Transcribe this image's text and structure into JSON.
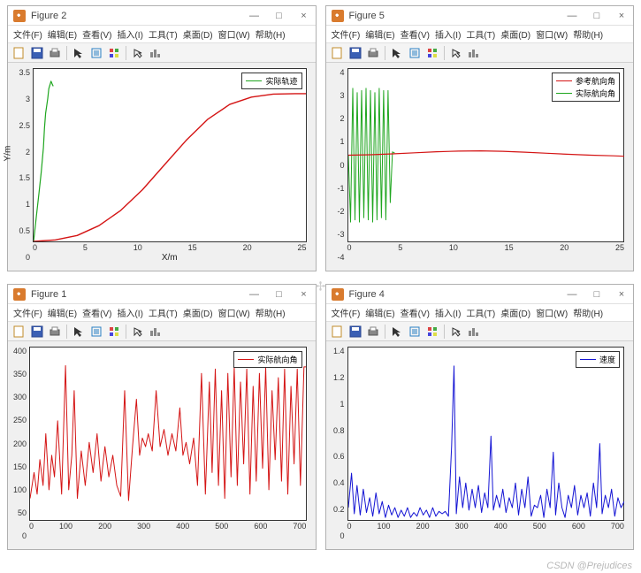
{
  "watermark": "CSDN @Prejudices",
  "menus": [
    "文件(F)",
    "编辑(E)",
    "查看(V)",
    "插入(I)",
    "工具(T)",
    "桌面(D)",
    "窗口(W)",
    "帮助(H)"
  ],
  "win_buttons": {
    "min": "—",
    "max": "□",
    "close": "×"
  },
  "figures": [
    {
      "title": "Figure 2",
      "xlabel": "X/m",
      "ylabel": "Y/m",
      "xlim": [
        0,
        25
      ],
      "ylim": [
        0,
        3.5
      ],
      "xticks": [
        "0",
        "5",
        "10",
        "15",
        "20",
        "25"
      ],
      "yticks": [
        "0",
        "0.5",
        "1",
        "1.5",
        "2",
        "2.5",
        "3",
        "3.5"
      ],
      "legend": [
        {
          "label": "实际轨迹",
          "color": "#1fa61f"
        }
      ],
      "series": [
        {
          "color": "#1fa61f",
          "width": 1.2,
          "pts": [
            [
              0,
              0
            ],
            [
              0.3,
              0.6
            ],
            [
              0.5,
              1.0
            ],
            [
              0.7,
              1.4
            ],
            [
              0.9,
              1.9
            ],
            [
              1.0,
              2.3
            ],
            [
              1.1,
              2.6
            ],
            [
              1.3,
              2.9
            ],
            [
              1.4,
              3.1
            ],
            [
              1.6,
              3.25
            ],
            [
              1.7,
              3.2
            ],
            [
              1.8,
              3.15
            ]
          ]
        },
        {
          "color": "#d41414",
          "width": 1.4,
          "pts": [
            [
              0,
              0
            ],
            [
              2,
              0.03
            ],
            [
              4,
              0.12
            ],
            [
              6,
              0.32
            ],
            [
              8,
              0.63
            ],
            [
              10,
              1.05
            ],
            [
              12,
              1.55
            ],
            [
              14,
              2.05
            ],
            [
              16,
              2.48
            ],
            [
              18,
              2.78
            ],
            [
              20,
              2.93
            ],
            [
              22,
              2.99
            ],
            [
              24,
              3.0
            ],
            [
              25,
              3.0
            ]
          ]
        }
      ]
    },
    {
      "title": "Figure 5",
      "xlabel": "",
      "ylabel": "",
      "xlim": [
        0,
        25
      ],
      "ylim": [
        -4,
        4
      ],
      "xticks": [
        "0",
        "5",
        "10",
        "15",
        "20",
        "25"
      ],
      "yticks": [
        "-4",
        "-3",
        "-2",
        "-1",
        "0",
        "1",
        "2",
        "3",
        "4"
      ],
      "legend": [
        {
          "label": "参考航向角",
          "color": "#d41414"
        },
        {
          "label": "实际航向角",
          "color": "#1fa61f"
        }
      ],
      "series": [
        {
          "color": "#1fa61f",
          "width": 1.0,
          "pts": [
            [
              0,
              0
            ],
            [
              0.2,
              -3.1
            ],
            [
              0.4,
              3.1
            ],
            [
              0.6,
              -3.0
            ],
            [
              0.8,
              2.9
            ],
            [
              1.0,
              -3.1
            ],
            [
              1.2,
              3.0
            ],
            [
              1.4,
              -2.9
            ],
            [
              1.6,
              3.1
            ],
            [
              1.8,
              -3.0
            ],
            [
              2.0,
              3.0
            ],
            [
              2.2,
              -3.1
            ],
            [
              2.4,
              2.9
            ],
            [
              2.6,
              -3.0
            ],
            [
              2.8,
              3.1
            ],
            [
              3.0,
              -2.9
            ],
            [
              3.2,
              3.0
            ],
            [
              3.4,
              -3.0
            ],
            [
              3.6,
              3.0
            ],
            [
              3.8,
              -2.2
            ],
            [
              4.0,
              0.15
            ],
            [
              4.2,
              0.1
            ]
          ]
        },
        {
          "color": "#d41414",
          "width": 1.2,
          "pts": [
            [
              0,
              0
            ],
            [
              2,
              0.02
            ],
            [
              4,
              0.06
            ],
            [
              6,
              0.11
            ],
            [
              8,
              0.16
            ],
            [
              10,
              0.19
            ],
            [
              12,
              0.2
            ],
            [
              14,
              0.18
            ],
            [
              16,
              0.14
            ],
            [
              18,
              0.09
            ],
            [
              20,
              0.04
            ],
            [
              22,
              0.0
            ],
            [
              24,
              -0.03
            ],
            [
              25,
              -0.05
            ]
          ]
        }
      ]
    },
    {
      "title": "Figure 1",
      "xlabel": "",
      "ylabel": "",
      "xlim": [
        0,
        700
      ],
      "ylim": [
        0,
        400
      ],
      "xticks": [
        "0",
        "100",
        "200",
        "300",
        "400",
        "500",
        "600",
        "700"
      ],
      "yticks": [
        "0",
        "50",
        "100",
        "150",
        "200",
        "250",
        "300",
        "350",
        "400"
      ],
      "legend": [
        {
          "label": "实际航向角",
          "color": "#d41414"
        }
      ],
      "series": [
        {
          "color": "#d41414",
          "width": 1.0,
          "pts": [
            [
              0,
              50
            ],
            [
              10,
              110
            ],
            [
              18,
              60
            ],
            [
              25,
              140
            ],
            [
              33,
              80
            ],
            [
              40,
              200
            ],
            [
              48,
              70
            ],
            [
              55,
              150
            ],
            [
              62,
              100
            ],
            [
              70,
              230
            ],
            [
              80,
              60
            ],
            [
              90,
              358
            ],
            [
              98,
              70
            ],
            [
              106,
              150
            ],
            [
              112,
              300
            ],
            [
              120,
              50
            ],
            [
              130,
              160
            ],
            [
              140,
              80
            ],
            [
              150,
              180
            ],
            [
              160,
              110
            ],
            [
              170,
              200
            ],
            [
              180,
              90
            ],
            [
              190,
              170
            ],
            [
              200,
              100
            ],
            [
              210,
              150
            ],
            [
              220,
              80
            ],
            [
              230,
              55
            ],
            [
              240,
              300
            ],
            [
              250,
              45
            ],
            [
              260,
              170
            ],
            [
              270,
              280
            ],
            [
              278,
              150
            ],
            [
              285,
              190
            ],
            [
              293,
              170
            ],
            [
              300,
              200
            ],
            [
              310,
              160
            ],
            [
              320,
              300
            ],
            [
              330,
              170
            ],
            [
              340,
              210
            ],
            [
              350,
              150
            ],
            [
              360,
              200
            ],
            [
              370,
              160
            ],
            [
              380,
              260
            ],
            [
              388,
              150
            ],
            [
              396,
              180
            ],
            [
              405,
              130
            ],
            [
              415,
              190
            ],
            [
              425,
              80
            ],
            [
              435,
              340
            ],
            [
              445,
              60
            ],
            [
              455,
              320
            ],
            [
              462,
              110
            ],
            [
              470,
              350
            ],
            [
              478,
              80
            ],
            [
              486,
              300
            ],
            [
              494,
              50
            ],
            [
              502,
              340
            ],
            [
              510,
              100
            ],
            [
              518,
              355
            ],
            [
              526,
              80
            ],
            [
              534,
              320
            ],
            [
              542,
              130
            ],
            [
              550,
              350
            ],
            [
              558,
              60
            ],
            [
              566,
              310
            ],
            [
              574,
              90
            ],
            [
              582,
              340
            ],
            [
              590,
              120
            ],
            [
              598,
              355
            ],
            [
              606,
              70
            ],
            [
              614,
              300
            ],
            [
              622,
              140
            ],
            [
              630,
              330
            ],
            [
              638,
              90
            ],
            [
              646,
              350
            ],
            [
              654,
              60
            ],
            [
              662,
              310
            ],
            [
              670,
              130
            ],
            [
              678,
              350
            ],
            [
              686,
              80
            ],
            [
              695,
              355
            ],
            [
              700,
              355
            ]
          ]
        }
      ]
    },
    {
      "title": "Figure 4",
      "xlabel": "",
      "ylabel": "",
      "xlim": [
        0,
        700
      ],
      "ylim": [
        0,
        1.4
      ],
      "xticks": [
        "0",
        "100",
        "200",
        "300",
        "400",
        "500",
        "600",
        "700"
      ],
      "yticks": [
        "0",
        "0.2",
        "0.4",
        "0.6",
        "0.8",
        "1",
        "1.2",
        "1.4"
      ],
      "legend": [
        {
          "label": "速度",
          "color": "#1414d4"
        }
      ],
      "series": [
        {
          "color": "#1414d4",
          "width": 1.0,
          "pts": [
            [
              0,
              0.1
            ],
            [
              8,
              0.38
            ],
            [
              15,
              0.05
            ],
            [
              22,
              0.28
            ],
            [
              30,
              0.04
            ],
            [
              38,
              0.25
            ],
            [
              46,
              0.06
            ],
            [
              54,
              0.18
            ],
            [
              62,
              0.03
            ],
            [
              70,
              0.22
            ],
            [
              78,
              0.05
            ],
            [
              86,
              0.15
            ],
            [
              94,
              0.02
            ],
            [
              102,
              0.12
            ],
            [
              110,
              0.04
            ],
            [
              118,
              0.1
            ],
            [
              126,
              0.02
            ],
            [
              134,
              0.08
            ],
            [
              142,
              0.03
            ],
            [
              150,
              0.1
            ],
            [
              158,
              0.02
            ],
            [
              166,
              0.06
            ],
            [
              174,
              0.03
            ],
            [
              182,
              0.1
            ],
            [
              190,
              0.04
            ],
            [
              198,
              0.08
            ],
            [
              206,
              0.02
            ],
            [
              214,
              0.1
            ],
            [
              222,
              0.03
            ],
            [
              230,
              0.07
            ],
            [
              238,
              0.05
            ],
            [
              246,
              0.07
            ],
            [
              254,
              0.03
            ],
            [
              262,
              0.6
            ],
            [
              268,
              1.25
            ],
            [
              274,
              0.05
            ],
            [
              282,
              0.35
            ],
            [
              290,
              0.1
            ],
            [
              298,
              0.3
            ],
            [
              306,
              0.08
            ],
            [
              314,
              0.25
            ],
            [
              322,
              0.1
            ],
            [
              330,
              0.28
            ],
            [
              338,
              0.06
            ],
            [
              346,
              0.22
            ],
            [
              354,
              0.1
            ],
            [
              362,
              0.68
            ],
            [
              368,
              0.08
            ],
            [
              376,
              0.2
            ],
            [
              384,
              0.1
            ],
            [
              392,
              0.25
            ],
            [
              400,
              0.06
            ],
            [
              408,
              0.18
            ],
            [
              416,
              0.1
            ],
            [
              424,
              0.3
            ],
            [
              432,
              0.04
            ],
            [
              440,
              0.25
            ],
            [
              448,
              0.1
            ],
            [
              456,
              0.35
            ],
            [
              464,
              0.03
            ],
            [
              472,
              0.12
            ],
            [
              480,
              0.1
            ],
            [
              488,
              0.2
            ],
            [
              496,
              0.02
            ],
            [
              504,
              0.25
            ],
            [
              512,
              0.1
            ],
            [
              520,
              0.55
            ],
            [
              526,
              0.04
            ],
            [
              534,
              0.3
            ],
            [
              542,
              0.1
            ],
            [
              550,
              0.02
            ],
            [
              558,
              0.2
            ],
            [
              566,
              0.1
            ],
            [
              574,
              0.28
            ],
            [
              582,
              0.04
            ],
            [
              590,
              0.2
            ],
            [
              598,
              0.1
            ],
            [
              606,
              0.22
            ],
            [
              614,
              0.03
            ],
            [
              622,
              0.3
            ],
            [
              630,
              0.1
            ],
            [
              638,
              0.62
            ],
            [
              644,
              0.05
            ],
            [
              652,
              0.2
            ],
            [
              660,
              0.1
            ],
            [
              668,
              0.25
            ],
            [
              676,
              0.03
            ],
            [
              684,
              0.18
            ],
            [
              692,
              0.1
            ],
            [
              700,
              0.15
            ]
          ]
        }
      ]
    }
  ]
}
